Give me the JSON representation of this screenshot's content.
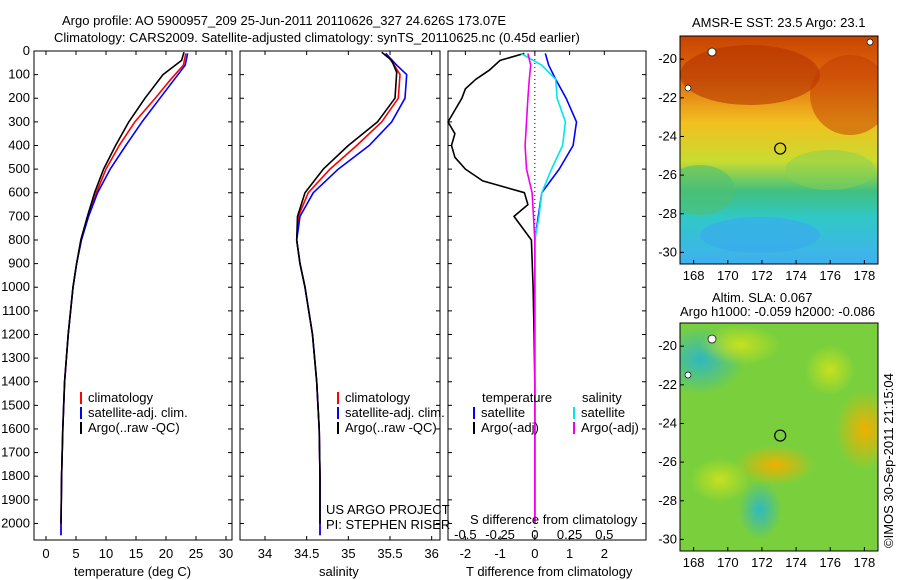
{
  "header": {
    "title_line1": "Argo profile: AO 5900957_209 25-Jun-2011 20110626_327 24.626S 173.07E",
    "title_line2": "Climatology: CARS2009. Satellite-adjusted climatology: synTS_20110625.nc (0.45d earlier)"
  },
  "colors": {
    "climatology": "#ff0000",
    "satellite": "#0000ff",
    "argo": "#000000",
    "salinity_satellite": "#00e5ee",
    "salinity_argo": "#ee00ee"
  },
  "chart_data": [
    {
      "type": "line",
      "id": "temperature",
      "xlabel": "temperature (deg C)",
      "ylabel": "",
      "xlim": [
        -2,
        31
      ],
      "ylim": [
        2070,
        0
      ],
      "xticks": [
        "0",
        "5",
        "10",
        "15",
        "20",
        "25",
        "30"
      ],
      "yticks": [
        "0",
        "100",
        "200",
        "300",
        "400",
        "500",
        "600",
        "700",
        "800",
        "900",
        "1000",
        "1100",
        "1200",
        "1300",
        "1400",
        "1500",
        "1600",
        "1700",
        "1800",
        "1900",
        "2000"
      ],
      "legend": [
        "climatology",
        "satellite-adj. clim.",
        "Argo(..raw -QC)"
      ],
      "series": [
        {
          "name": "climatology",
          "depth": [
            10,
            60,
            120,
            200,
            300,
            400,
            500,
            600,
            700,
            800,
            900,
            1000,
            1200,
            1400,
            1600,
            1800,
            2000,
            2050
          ],
          "values": [
            23.3,
            22.9,
            20.8,
            18.2,
            14.8,
            12.2,
            10.0,
            8.4,
            7.0,
            5.9,
            5.1,
            4.5,
            3.7,
            3.1,
            2.8,
            2.6,
            2.5,
            2.5
          ]
        },
        {
          "name": "satellite-adj. clim.",
          "depth": [
            10,
            60,
            120,
            200,
            300,
            400,
            500,
            600,
            700,
            800,
            900,
            1000,
            1200,
            1400,
            1600,
            1800,
            2000,
            2050
          ],
          "values": [
            23.6,
            23.2,
            21.4,
            19.0,
            16.0,
            13.3,
            10.7,
            8.6,
            7.1,
            5.9,
            5.1,
            4.5,
            3.7,
            3.1,
            2.8,
            2.6,
            2.5,
            2.5
          ]
        },
        {
          "name": "Argo(..raw -QC)",
          "depth": [
            5,
            40,
            100,
            200,
            300,
            400,
            500,
            600,
            700,
            800,
            900,
            1000,
            1200,
            1400,
            1600,
            1800,
            2000
          ],
          "values": [
            23.0,
            22.6,
            19.5,
            16.5,
            13.8,
            11.6,
            9.6,
            8.1,
            6.9,
            5.8,
            5.1,
            4.5,
            3.7,
            3.1,
            2.8,
            2.6,
            2.5
          ]
        }
      ]
    },
    {
      "type": "line",
      "id": "salinity",
      "xlabel": "salinity",
      "ylabel": "",
      "xlim": [
        33.7,
        36.1
      ],
      "ylim": [
        2070,
        0
      ],
      "xticks": [
        "34",
        "34.5",
        "35",
        "35.5",
        "36"
      ],
      "legend": [
        "climatology",
        "satellite-adj. clim.",
        "Argo(..raw -QC)"
      ],
      "annotation": [
        "US ARGO PROJECT",
        "PI: STEPHEN RISER"
      ],
      "series": [
        {
          "name": "climatology",
          "depth": [
            10,
            60,
            100,
            200,
            300,
            400,
            500,
            600,
            700,
            800,
            900,
            1000,
            1200,
            1400,
            1600,
            1800,
            2000,
            2050
          ],
          "values": [
            35.45,
            35.55,
            35.62,
            35.6,
            35.4,
            35.1,
            34.78,
            34.52,
            34.4,
            34.38,
            34.42,
            34.48,
            34.57,
            34.62,
            34.65,
            34.66,
            34.66,
            34.66
          ]
        },
        {
          "name": "satellite-adj. clim.",
          "depth": [
            10,
            60,
            100,
            200,
            300,
            400,
            500,
            600,
            700,
            800,
            900,
            1000,
            1200,
            1400,
            1600,
            1800,
            2000,
            2050
          ],
          "values": [
            35.45,
            35.58,
            35.7,
            35.68,
            35.52,
            35.25,
            34.88,
            34.58,
            34.42,
            34.38,
            34.42,
            34.48,
            34.57,
            34.62,
            34.65,
            34.66,
            34.66,
            34.66
          ]
        },
        {
          "name": "Argo(..raw -QC)",
          "depth": [
            5,
            40,
            90,
            200,
            300,
            400,
            500,
            600,
            700,
            800,
            900,
            1000,
            1200,
            1400,
            1600,
            1800,
            2000
          ],
          "values": [
            35.4,
            35.52,
            35.58,
            35.56,
            35.35,
            35.0,
            34.7,
            34.48,
            34.39,
            34.38,
            34.42,
            34.48,
            34.57,
            34.62,
            34.65,
            34.66,
            34.66
          ]
        }
      ]
    },
    {
      "type": "line",
      "id": "difference",
      "xlabel": "T difference from climatology",
      "xlabel_top": "S difference from climatology",
      "xlim": [
        -2.5,
        3.2
      ],
      "ylim": [
        2070,
        0
      ],
      "xticks": [
        "-2",
        "-1",
        "0",
        "1",
        "2"
      ],
      "xticks_salinity": [
        "-0.5",
        "-0.25",
        "0",
        "0.25",
        "0.5"
      ],
      "legend_temperature_title": "temperature",
      "legend_salinity_title": "salinity",
      "legend_temperature": [
        "satellite",
        "Argo(-adj)"
      ],
      "legend_salinity": [
        "satellite",
        "Argo(-adj)"
      ],
      "series": [
        {
          "name": "T satellite",
          "depth": [
            10,
            60,
            120,
            200,
            300,
            400,
            500,
            600,
            700,
            800,
            1000,
            1200,
            1400,
            1600,
            1800,
            2000
          ],
          "values": [
            0.3,
            0.4,
            0.6,
            0.9,
            1.2,
            1.1,
            0.7,
            0.2,
            0.1,
            0.0,
            0.0,
            0.0,
            0.0,
            0.0,
            0.0,
            0.0
          ]
        },
        {
          "name": "T Argo(-adj)",
          "depth": [
            10,
            40,
            80,
            120,
            160,
            200,
            250,
            300,
            350,
            400,
            450,
            500,
            550,
            600,
            650,
            700,
            800,
            1000,
            1200,
            1400,
            1600,
            1800,
            2000
          ],
          "values": [
            -0.3,
            -1.0,
            -1.3,
            -1.7,
            -2.0,
            -2.1,
            -2.3,
            -2.5,
            -2.3,
            -2.4,
            -2.3,
            -2.0,
            -1.5,
            -0.3,
            -0.2,
            -0.6,
            -0.1,
            -0.05,
            -0.02,
            0.0,
            0.0,
            0.0,
            0.0
          ]
        },
        {
          "name": "S satellite",
          "depth": [
            10,
            60,
            120,
            200,
            300,
            400,
            500,
            600,
            700,
            800,
            1000,
            1200,
            1400,
            1600,
            1800,
            2000
          ],
          "values": [
            -0.1,
            0.05,
            0.15,
            0.16,
            0.22,
            0.2,
            0.12,
            0.05,
            0.03,
            0.0,
            0.0,
            0.0,
            0.0,
            0.0,
            0.0,
            0.0
          ]
        },
        {
          "name": "S Argo(-adj)",
          "depth": [
            10,
            60,
            120,
            200,
            300,
            400,
            500,
            600,
            700,
            800,
            1000,
            1200,
            1400,
            1600,
            1800,
            2000
          ],
          "values": [
            -0.05,
            -0.03,
            -0.04,
            -0.05,
            -0.06,
            -0.07,
            -0.06,
            -0.02,
            -0.01,
            0.0,
            0.0,
            0.0,
            0.0,
            0.0,
            0.0,
            0.0
          ]
        }
      ]
    },
    {
      "type": "heatmap",
      "id": "sst_map",
      "title": "AMSR-E SST: 23.5 Argo: 23.1",
      "xticks": [
        "168",
        "170",
        "172",
        "174",
        "176",
        "178"
      ],
      "yticks": [
        "-20",
        "-22",
        "-24",
        "-26",
        "-28",
        "-30"
      ],
      "xlim": [
        167.2,
        178.8
      ],
      "ylim": [
        -30.6,
        -18.8
      ],
      "marker": {
        "lon": 173.07,
        "lat": -24.626
      }
    },
    {
      "type": "heatmap",
      "id": "sla_map",
      "title": "Altim. SLA: 0.067",
      "subtitle": "Argo h1000: -0.059 h2000: -0.086",
      "xticks": [
        "168",
        "170",
        "172",
        "174",
        "176",
        "178"
      ],
      "yticks": [
        "-20",
        "-22",
        "-24",
        "-26",
        "-28",
        "-30"
      ],
      "xlim": [
        167.2,
        178.8
      ],
      "ylim": [
        -30.6,
        -18.8
      ],
      "marker": {
        "lon": 173.07,
        "lat": -24.626
      }
    }
  ],
  "footer": {
    "vertical_stamp": "©IMOS 30-Sep-2011 21:15:04"
  }
}
